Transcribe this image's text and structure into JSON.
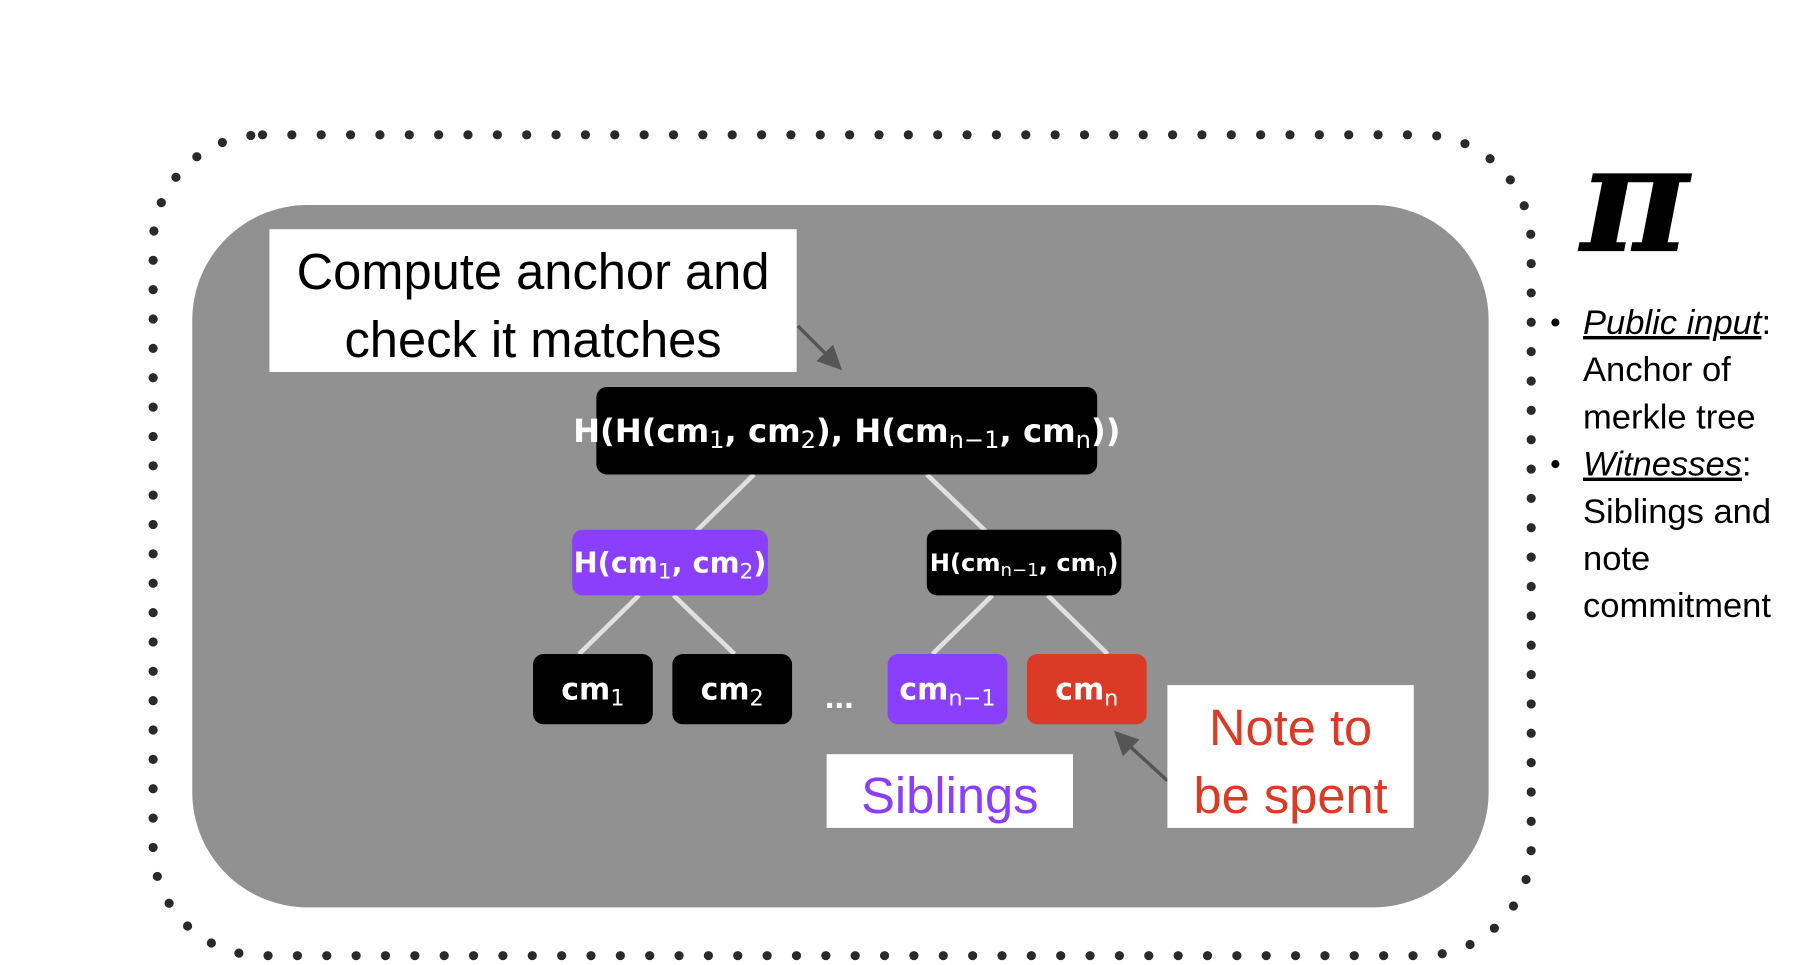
{
  "instruction": {
    "lines": [
      "Compute anchor and",
      "check it matches"
    ]
  },
  "nodes": [
    {
      "id": "root",
      "label": [
        "H(H(cm",
        "1",
        ", cm",
        "2",
        "), H(cm",
        "n−1",
        ", cm",
        "n",
        "))"
      ]
    },
    {
      "id": "left",
      "label": [
        "H(cm",
        "1",
        ", cm",
        "2",
        ")"
      ]
    },
    {
      "id": "right",
      "label": [
        "H(cm",
        "n−1",
        ", cm",
        "n",
        ")"
      ]
    },
    {
      "id": "leaf1",
      "label": [
        "cm",
        "1"
      ]
    },
    {
      "id": "leaf2",
      "label": [
        "cm",
        "2"
      ]
    },
    {
      "id": "leafn1",
      "label": [
        "cm",
        "n−1"
      ]
    },
    {
      "id": "leafn",
      "label": [
        "cm",
        "n"
      ]
    }
  ],
  "ellipsis": "...",
  "siblings_label": "Siblings",
  "spent_label": {
    "lines": [
      "Note to",
      "be spent"
    ]
  },
  "proof_symbol": "π",
  "bullets": [
    {
      "term": "Public input",
      "punct": ":",
      "lines": [
        "Anchor of",
        "merkle tree"
      ]
    },
    {
      "term": "Witnesses",
      "punct": ":",
      "lines": [
        "Siblings and",
        "note",
        "commitment"
      ]
    }
  ]
}
